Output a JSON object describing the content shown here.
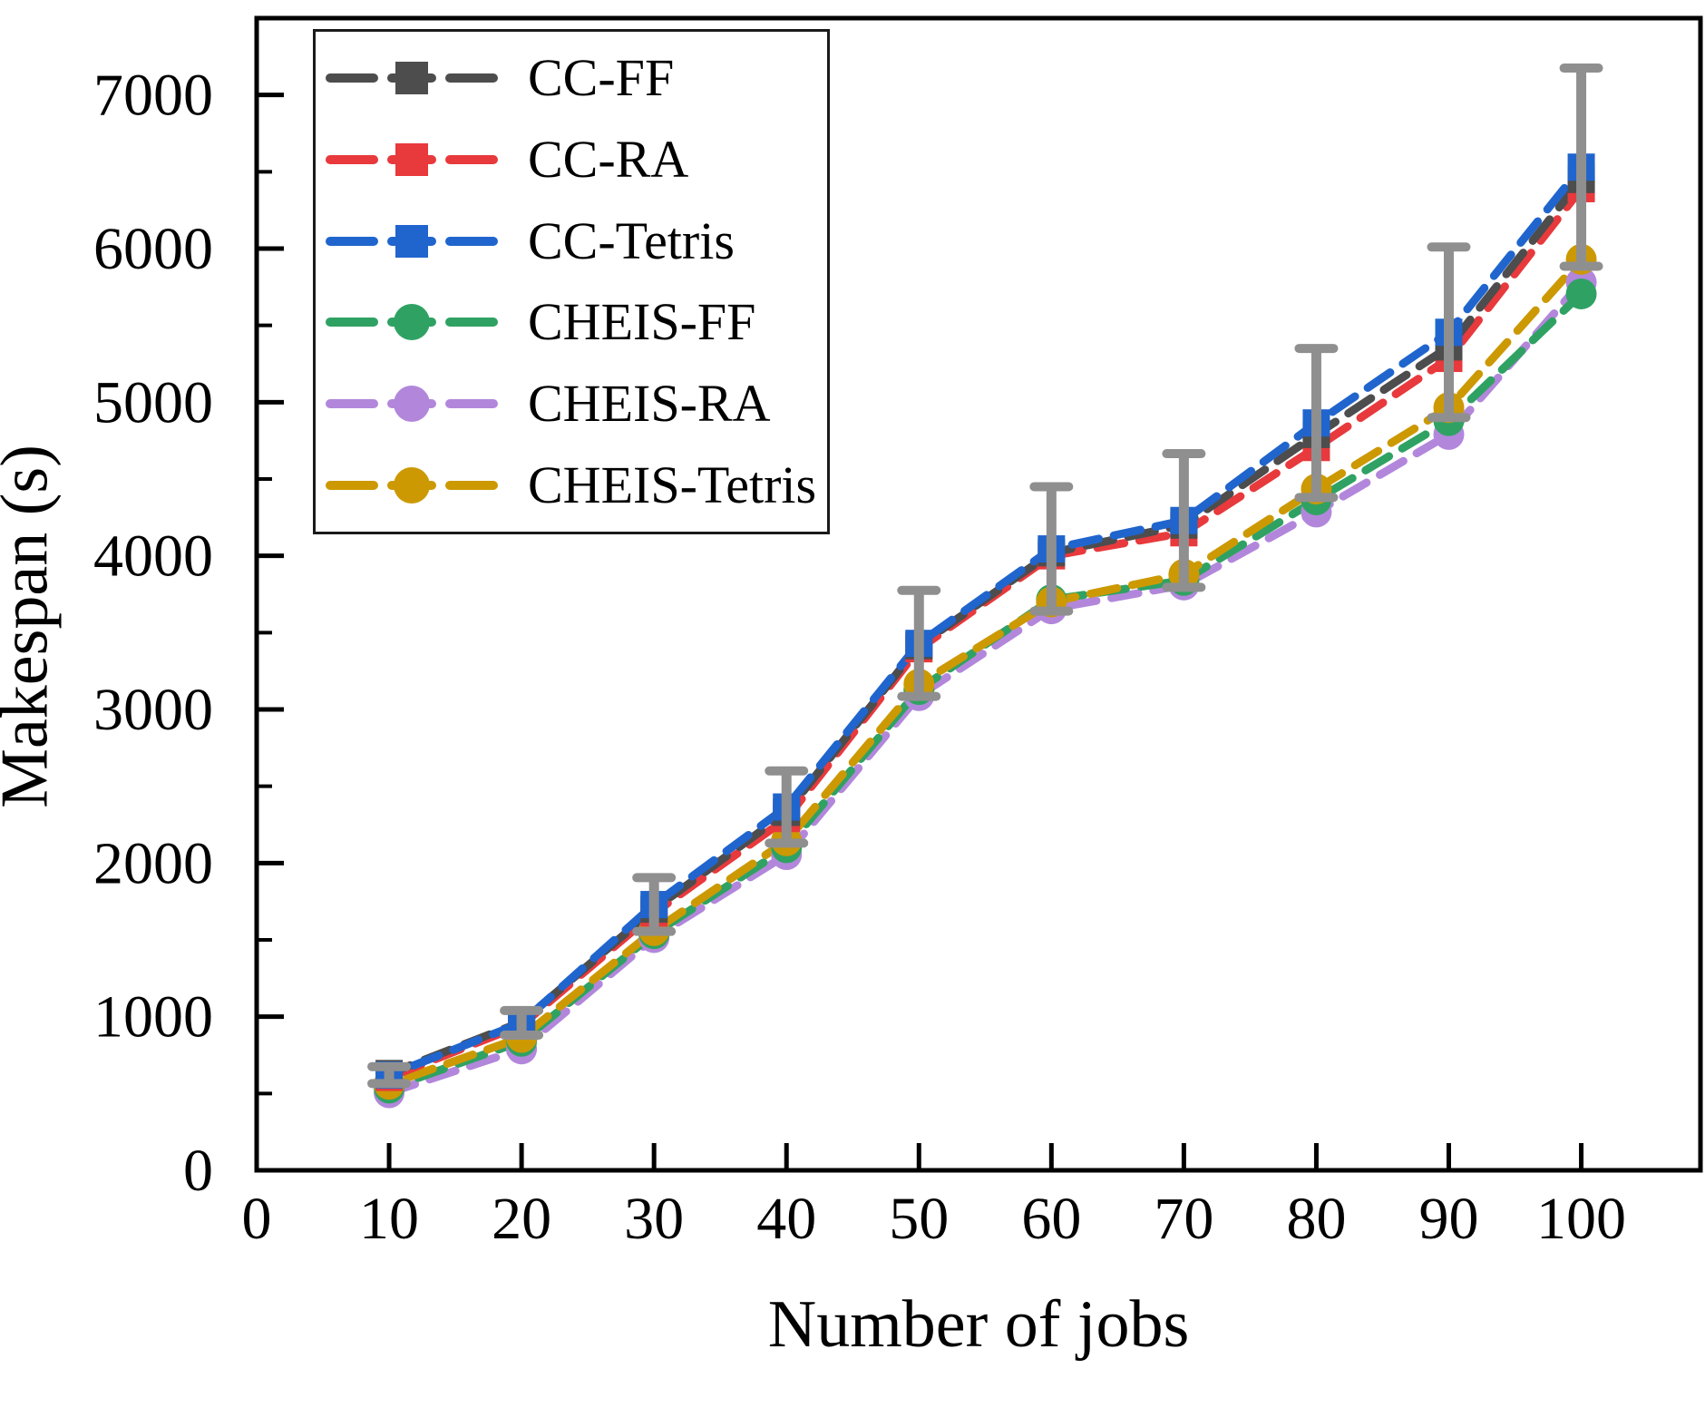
{
  "chart_data": {
    "type": "line",
    "title": "",
    "xlabel": "Number of jobs",
    "ylabel": "Makespan (s)",
    "x": [
      10,
      20,
      30,
      40,
      50,
      60,
      70,
      80,
      90,
      100
    ],
    "xlim": [
      0,
      109
    ],
    "ylim": [
      0,
      7500
    ],
    "x_ticks": [
      0,
      10,
      20,
      30,
      40,
      50,
      60,
      70,
      80,
      90,
      100
    ],
    "y_ticks": [
      0,
      1000,
      2000,
      3000,
      4000,
      5000,
      6000,
      7000
    ],
    "y_minor_step": 500,
    "grid": false,
    "line_style": "dashed",
    "legend_position": "upper left",
    "error_bar_color": "#8f8f8f",
    "series": [
      {
        "name": "CHEIS-RA",
        "color": "#b287db",
        "marker": "circle",
        "values": [
          505,
          790,
          1515,
          2055,
          3090,
          3655,
          3810,
          4285,
          4790,
          5780
        ]
      },
      {
        "name": "CHEIS-FF",
        "color": "#2fa263",
        "marker": "circle",
        "values": [
          535,
          840,
          1540,
          2100,
          3130,
          3715,
          3840,
          4365,
          4880,
          5705
        ]
      },
      {
        "name": "CHEIS-Tetris",
        "color": "#cc9903",
        "marker": "circle",
        "values": [
          560,
          865,
          1560,
          2145,
          3165,
          3700,
          3880,
          4435,
          4965,
          5930
        ]
      },
      {
        "name": "CC-RA",
        "color": "#e8393c",
        "marker": "square",
        "values": [
          605,
          945,
          1675,
          2290,
          3395,
          4000,
          4150,
          4705,
          5285,
          6390
        ]
      },
      {
        "name": "CC-FF",
        "color": "#4d4d4d",
        "marker": "square",
        "values": [
          630,
          965,
          1700,
          2330,
          3415,
          4020,
          4200,
          4790,
          5360,
          6450
        ]
      },
      {
        "name": "CC-Tetris",
        "color": "#2065cd",
        "marker": "square",
        "values": [
          620,
          960,
          1730,
          2365,
          3430,
          4045,
          4230,
          4865,
          5455,
          6530
        ],
        "error": [
          55,
          80,
          175,
          235,
          345,
          405,
          435,
          485,
          555,
          645
        ]
      }
    ],
    "legend_order": [
      "CC-FF",
      "CC-RA",
      "CC-Tetris",
      "CHEIS-FF",
      "CHEIS-RA",
      "CHEIS-Tetris"
    ]
  }
}
